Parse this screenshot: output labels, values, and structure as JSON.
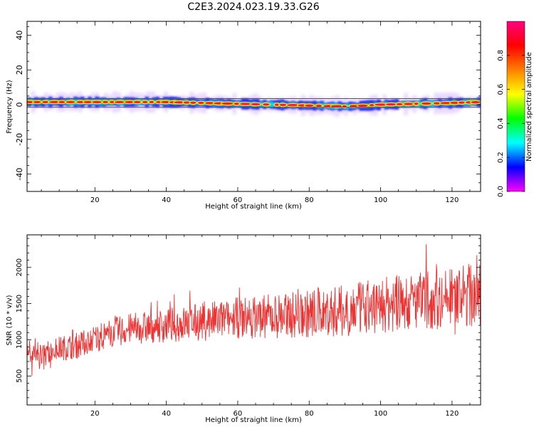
{
  "title": "C2E3.2024.023.19.33.G26",
  "chart_data": [
    {
      "type": "heatmap",
      "xlabel": "Height of straight line (km)",
      "ylabel": "Frequency (Hz)",
      "xlim": [
        1,
        128
      ],
      "ylim": [
        -50,
        48
      ],
      "x_ticks": [
        20,
        40,
        60,
        80,
        100,
        120
      ],
      "y_ticks": [
        -40,
        -20,
        0,
        20,
        40
      ],
      "grid": false,
      "colorbar": {
        "label": "Normalized spectral amplitude",
        "range": [
          0,
          1
        ],
        "ticks": [
          "0.0",
          "0.2",
          "0.4",
          "0.6",
          "0.8"
        ],
        "colors": [
          "#ff00ff",
          "#0000ff",
          "#00ffff",
          "#00ff00",
          "#ffff00",
          "#ff8000",
          "#ff0000",
          "#ff0080"
        ]
      },
      "band": {
        "center_hz": [
          [
            1,
            1.5
          ],
          [
            10,
            1.5
          ],
          [
            20,
            1.5
          ],
          [
            30,
            1.5
          ],
          [
            40,
            1.5
          ],
          [
            50,
            1.0
          ],
          [
            60,
            0.5
          ],
          [
            70,
            0.0
          ],
          [
            80,
            -0.5
          ],
          [
            90,
            -1.0
          ],
          [
            96,
            -0.5
          ],
          [
            100,
            0.0
          ],
          [
            110,
            0.5
          ],
          [
            120,
            1.0
          ],
          [
            128,
            1.5
          ]
        ],
        "reference_lines_hz": [
          3.5,
          -1.5
        ]
      }
    },
    {
      "type": "line",
      "xlabel": "Height of straight line (km)",
      "ylabel": "SNR (10 * v/v)",
      "xlim": [
        1,
        128
      ],
      "ylim": [
        100,
        2450
      ],
      "x_ticks": [
        20,
        40,
        60,
        80,
        100,
        120
      ],
      "y_ticks": [
        500,
        1000,
        1500,
        2000
      ],
      "grid": false,
      "line_color": "#ee3333",
      "trend": [
        [
          1,
          850
        ],
        [
          5,
          800
        ],
        [
          10,
          880
        ],
        [
          15,
          920
        ],
        [
          20,
          1020
        ],
        [
          25,
          1100
        ],
        [
          30,
          1150
        ],
        [
          40,
          1200
        ],
        [
          50,
          1250
        ],
        [
          60,
          1300
        ],
        [
          70,
          1330
        ],
        [
          80,
          1360
        ],
        [
          90,
          1400
        ],
        [
          100,
          1480
        ],
        [
          110,
          1530
        ],
        [
          120,
          1580
        ],
        [
          128,
          1620
        ]
      ]
    }
  ]
}
